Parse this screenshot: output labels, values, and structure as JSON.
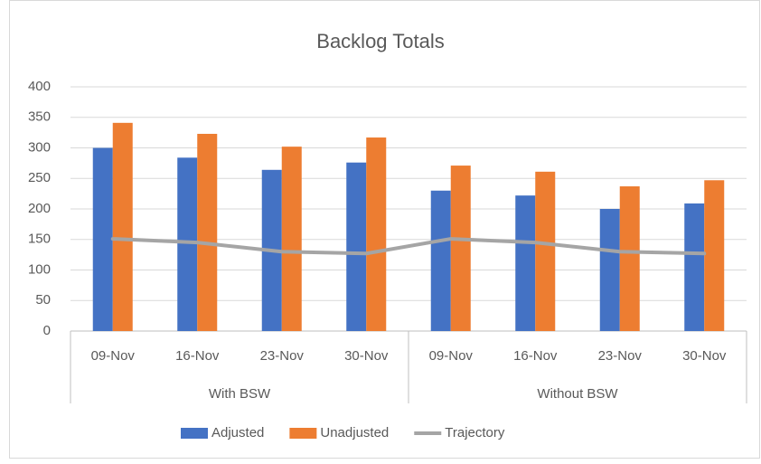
{
  "chart_data": {
    "type": "bar",
    "title": "Backlog Totals",
    "categories": [
      "09-Nov",
      "16-Nov",
      "23-Nov",
      "30-Nov",
      "09-Nov",
      "16-Nov",
      "23-Nov",
      "30-Nov"
    ],
    "category_groups": [
      "With BSW",
      "Without BSW"
    ],
    "series": [
      {
        "name": "Adjusted",
        "type": "bar",
        "color": "#4472c4",
        "values": [
          300,
          284,
          264,
          276,
          230,
          222,
          200,
          209
        ]
      },
      {
        "name": "Unadjusted",
        "type": "bar",
        "color": "#ed7d31",
        "values": [
          341,
          323,
          302,
          317,
          271,
          261,
          237,
          247
        ]
      },
      {
        "name": "Trajectory",
        "type": "line",
        "color": "#a5a5a5",
        "values": [
          151,
          145,
          130,
          127,
          151,
          145,
          130,
          127
        ]
      }
    ],
    "ylim": [
      0,
      400
    ],
    "yticks": [
      0,
      50,
      100,
      150,
      200,
      250,
      300,
      350,
      400
    ],
    "grid": true,
    "legend": "bottom"
  }
}
